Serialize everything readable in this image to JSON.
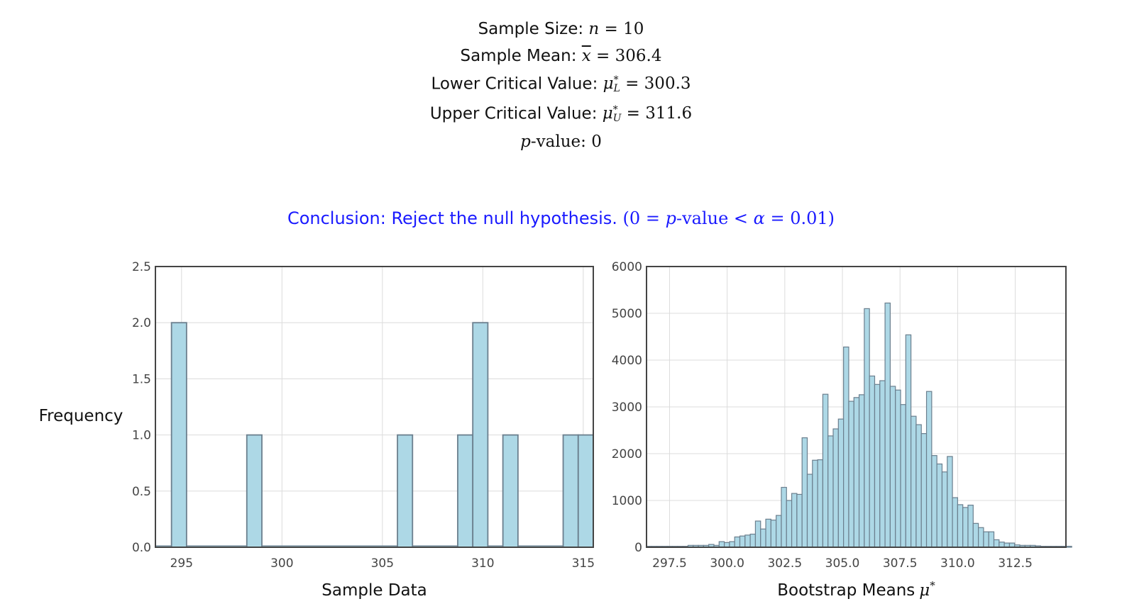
{
  "stats": {
    "sample_size_label": "Sample Size:",
    "sample_size_value": "10",
    "sample_mean_label": "Sample Mean:",
    "sample_mean_value": "306.4",
    "lower_label": "Lower Critical Value:",
    "lower_value": "300.3",
    "upper_label": "Upper Critical Value:",
    "upper_value": "311.6",
    "pvalue_label": "-value:",
    "pvalue_value": "0"
  },
  "conclusion": {
    "text": "Conclusion: Reject the null hypothesis.",
    "math_pvalue_label": "-value",
    "alpha_value": "0.01",
    "pvalue": "0"
  },
  "colors": {
    "bar_fill": "#add8e6",
    "bar_stroke": "#6b7f8e",
    "conclusion": "#1a1aff"
  },
  "chart_data": [
    {
      "type": "bar",
      "xlabel": "Sample Data",
      "ylabel": "Frequency",
      "xlim": [
        293.7,
        315.5
      ],
      "ylim": [
        0,
        2.5
      ],
      "xticks": [
        "295",
        "300",
        "305",
        "310",
        "315"
      ],
      "xtick_values": [
        295,
        300,
        305,
        310,
        315
      ],
      "yticks": [
        "0.0",
        "0.5",
        "1.0",
        "1.5",
        "2.0",
        "2.5"
      ],
      "ytick_values": [
        0,
        0.5,
        1.0,
        1.5,
        2.0,
        2.5
      ],
      "bin_width": 0.75,
      "bins": [
        {
          "x0": 294.5,
          "count": 2
        },
        {
          "x0": 298.25,
          "count": 1
        },
        {
          "x0": 305.75,
          "count": 1
        },
        {
          "x0": 308.75,
          "count": 1
        },
        {
          "x0": 309.5,
          "count": 2
        },
        {
          "x0": 311.0,
          "count": 1
        },
        {
          "x0": 314.0,
          "count": 1
        },
        {
          "x0": 314.75,
          "count": 1
        }
      ],
      "range": [
        293.7,
        315.5
      ],
      "grid": true
    },
    {
      "type": "bar",
      "xlabel": "Bootstrap Means",
      "xlim": [
        296.5,
        314.7
      ],
      "ylim": [
        0,
        6000
      ],
      "xticks": [
        "297.5",
        "300.0",
        "302.5",
        "305.0",
        "307.5",
        "310.0",
        "312.5"
      ],
      "xtick_values": [
        297.5,
        300.0,
        302.5,
        305.0,
        307.5,
        310.0,
        312.5
      ],
      "yticks": [
        "0",
        "1000",
        "2000",
        "3000",
        "4000",
        "5000",
        "6000"
      ],
      "ytick_values": [
        0,
        1000,
        2000,
        3000,
        4000,
        5000,
        6000
      ],
      "bin_start": 296.5,
      "bin_width": 0.225,
      "counts": [
        20,
        20,
        20,
        20,
        20,
        20,
        20,
        20,
        40,
        40,
        40,
        40,
        60,
        40,
        120,
        100,
        120,
        220,
        240,
        260,
        280,
        560,
        390,
        600,
        580,
        680,
        1280,
        1000,
        1150,
        1130,
        2340,
        1560,
        1860,
        1870,
        3270,
        2380,
        2530,
        2740,
        4280,
        3120,
        3200,
        3260,
        5100,
        3660,
        3480,
        3560,
        5220,
        3440,
        3360,
        3050,
        4540,
        2800,
        2620,
        2430,
        3330,
        1960,
        1780,
        1610,
        1940,
        1060,
        910,
        850,
        900,
        510,
        420,
        330,
        330,
        160,
        110,
        90,
        90,
        50,
        40,
        40,
        40,
        30,
        20,
        20,
        20,
        20,
        20,
        20
      ],
      "grid": true
    }
  ]
}
